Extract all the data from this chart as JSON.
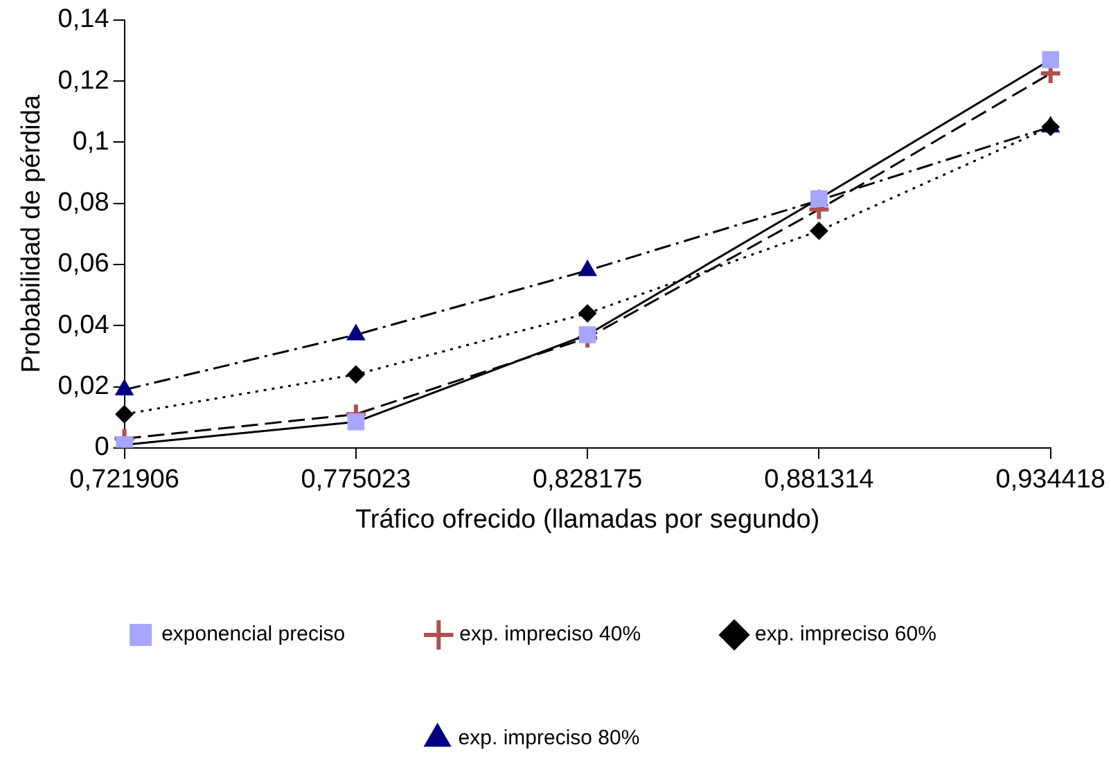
{
  "chart_data": {
    "type": "line",
    "xlabel": "Tráfico ofrecido (llamadas por segundo)",
    "ylabel": "Probabilidad de pérdida",
    "categories": [
      "0,721906",
      "0,775023",
      "0,828175",
      "0,881314",
      "0,934418"
    ],
    "ylim": [
      0,
      0.14
    ],
    "yticks": [
      0,
      {
        "value": 0.02,
        "label": "0,02"
      },
      {
        "value": 0.04,
        "label": "0,04"
      },
      {
        "value": 0.06,
        "label": "0,06"
      },
      {
        "value": 0.08,
        "label": "0,08"
      },
      {
        "value": 0.1,
        "label": "0,1"
      },
      {
        "value": 0.12,
        "label": "0,12"
      },
      {
        "value": 0.14,
        "label": "0,14"
      }
    ],
    "grid": false,
    "legend": "bottom",
    "series": [
      {
        "name": "exponencial preciso",
        "color": "#a6a6ff",
        "marker": "square",
        "line_style": "solid",
        "values": [
          0.001,
          0.0085,
          0.037,
          0.0815,
          0.127
        ]
      },
      {
        "name": "exp. impreciso 40%",
        "color": "#b05050",
        "marker": "cross",
        "line_style": "dashed",
        "values": [
          0.003,
          0.011,
          0.036,
          0.078,
          0.1225
        ]
      },
      {
        "name": "exp. impreciso 60%",
        "color": "#000000",
        "marker": "diamond",
        "line_style": "dotted",
        "values": [
          0.011,
          0.024,
          0.044,
          0.071,
          0.105
        ]
      },
      {
        "name": "exp. impreciso 80%",
        "color": "#000080",
        "marker": "triangle",
        "line_style": "dashdot",
        "values": [
          0.019,
          0.037,
          0.058,
          0.081,
          0.105
        ]
      }
    ]
  }
}
